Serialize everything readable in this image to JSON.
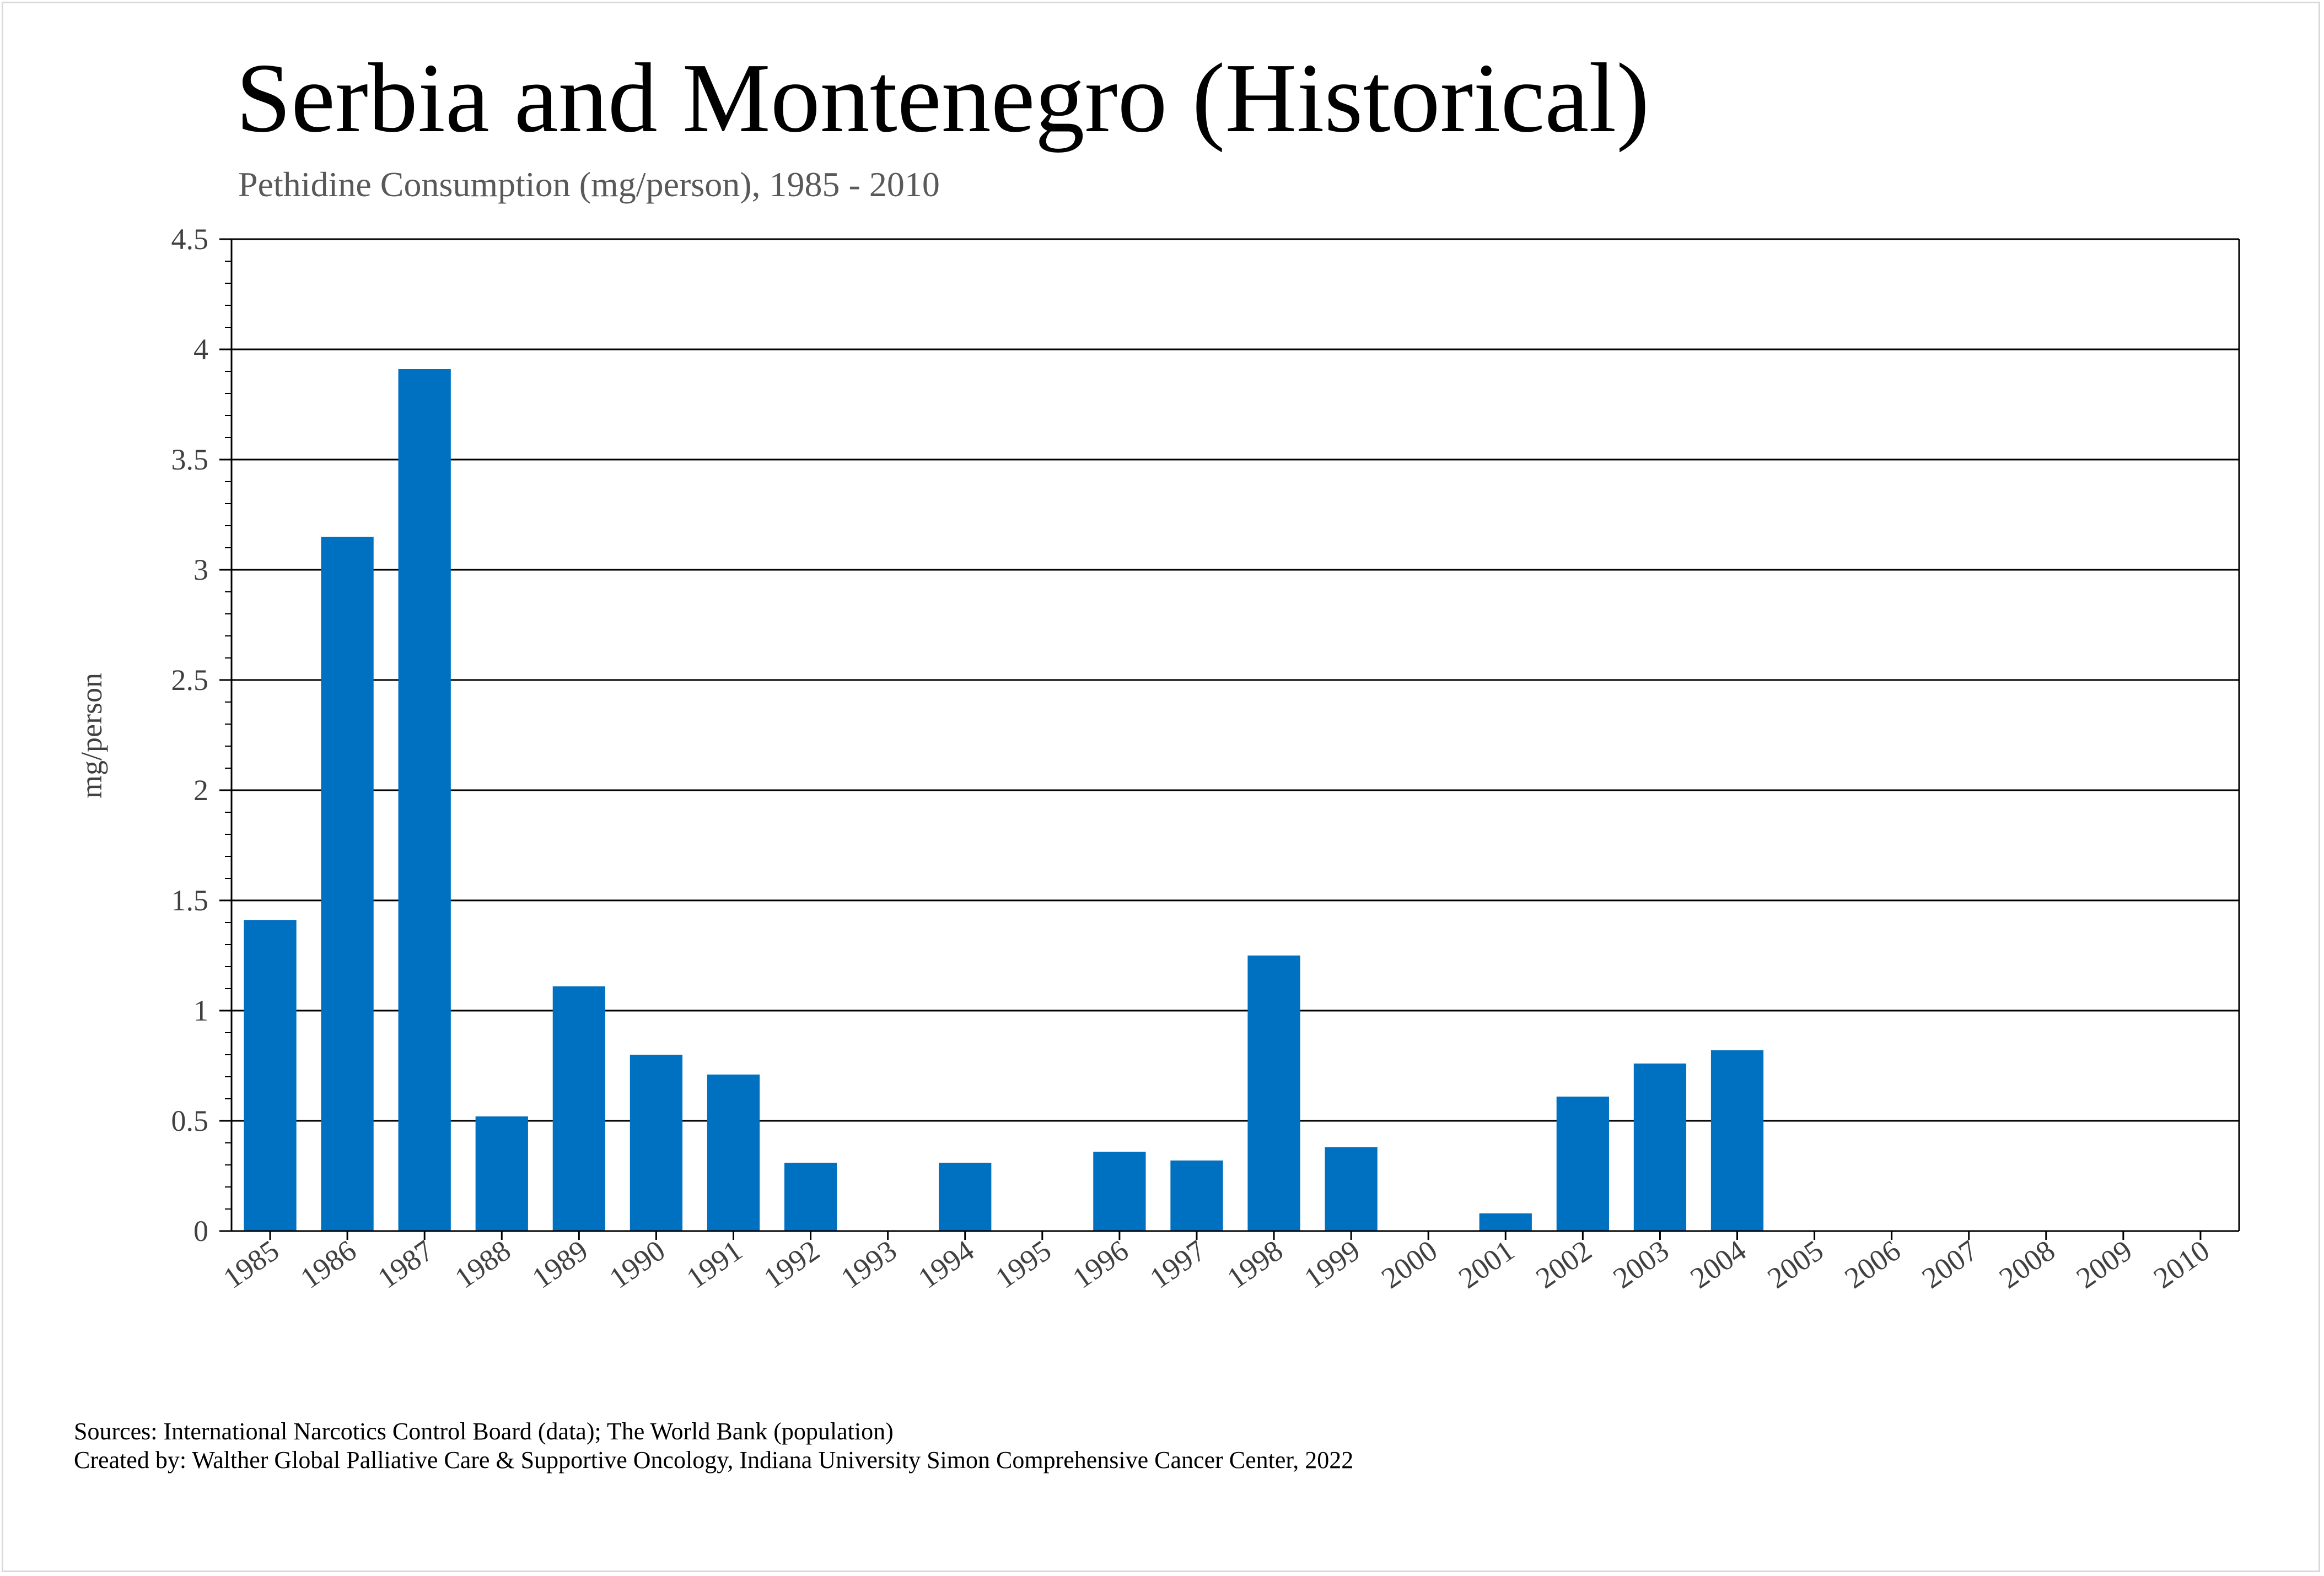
{
  "chart_data": {
    "type": "bar",
    "title": "Serbia and Montenegro (Historical)",
    "subtitle": "Pethidine Consumption (mg/person), 1985 - 2010",
    "xlabel": "",
    "ylabel": "mg/person",
    "ylim": [
      0,
      4.5
    ],
    "yticks": [
      "0",
      "0.5",
      "1",
      "1.5",
      "2",
      "2.5",
      "3",
      "3.5",
      "4",
      "4.5"
    ],
    "categories": [
      "1985",
      "1986",
      "1987",
      "1988",
      "1989",
      "1990",
      "1991",
      "1992",
      "1993",
      "1994",
      "1995",
      "1996",
      "1997",
      "1998",
      "1999",
      "2000",
      "2001",
      "2002",
      "2003",
      "2004",
      "2005",
      "2006",
      "2007",
      "2008",
      "2009",
      "2010"
    ],
    "values": [
      1.41,
      3.15,
      3.91,
      0.52,
      1.11,
      0.8,
      0.71,
      0.31,
      0,
      0.31,
      0,
      0.36,
      0.32,
      1.25,
      0.38,
      0,
      0.08,
      0.61,
      0.76,
      0.82,
      0,
      0,
      0,
      0,
      0,
      0
    ],
    "grid": true,
    "bar_color": "#0070c0"
  },
  "footer": {
    "sources": "Sources: International Narcotics Control Board (data); The World Bank (population)",
    "created_by": "Created by: Walther Global Palliative Care & Supportive Oncology, Indiana University Simon Comprehensive Cancer Center, 2022"
  }
}
